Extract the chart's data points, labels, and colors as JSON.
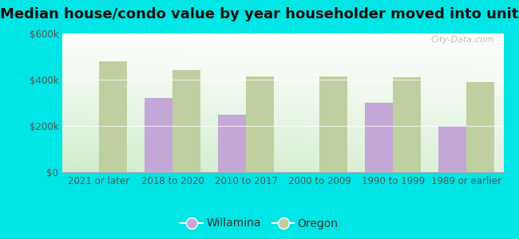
{
  "title": "Median house/condo value by year householder moved into unit",
  "categories": [
    "2021 or later",
    "2018 to 2020",
    "2010 to 2017",
    "2000 to 2009",
    "1990 to 1999",
    "1989 or earlier"
  ],
  "willamina": [
    null,
    320000,
    250000,
    null,
    300000,
    200000
  ],
  "oregon": [
    480000,
    440000,
    415000,
    415000,
    410000,
    390000
  ],
  "willamina_color": "#c4a8d8",
  "oregon_color": "#c0cfa0",
  "background_color": "#00e5e5",
  "plot_bg_top": "#f5fffc",
  "plot_bg_bottom": "#d8f0d0",
  "ylim": [
    0,
    600000
  ],
  "yticks": [
    0,
    200000,
    400000,
    600000
  ],
  "ytick_labels": [
    "$0",
    "$200k",
    "$400k",
    "$600k"
  ],
  "bar_width": 0.38,
  "watermark": "City-Data.com",
  "legend_willamina": "Willamina",
  "legend_oregon": "Oregon",
  "title_fontsize": 13,
  "tick_fontsize": 8.5,
  "legend_fontsize": 10
}
